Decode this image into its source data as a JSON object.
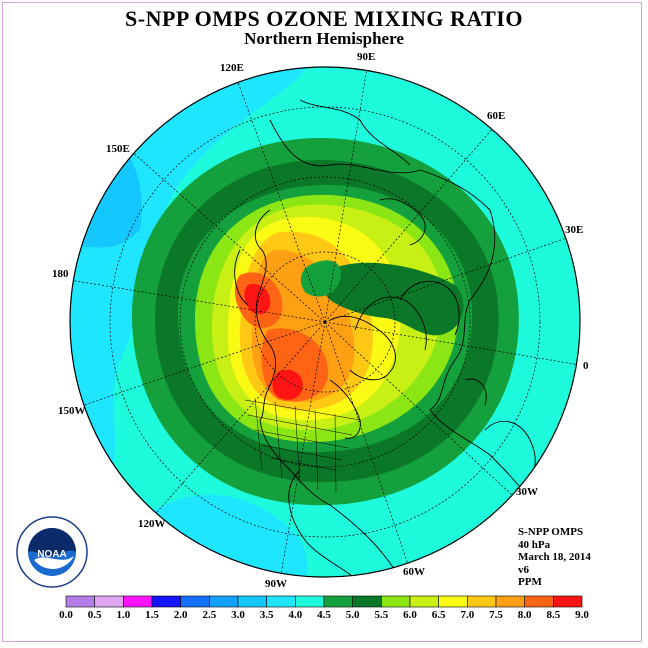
{
  "title": "S-NPP OMPS OZONE MIXING RATIO",
  "subtitle": "Northern Hemisphere",
  "longitude_labels": [
    "120E",
    "90E",
    "60E",
    "150E",
    "30E",
    "180",
    "0",
    "150W",
    "30W",
    "120W",
    "60W",
    "90W"
  ],
  "info": {
    "instrument": "S-NPP OMPS",
    "level": "40 hPa",
    "date": "March 18, 2014",
    "version": "v6",
    "units": "PPM"
  },
  "logo": {
    "text": "NOAA",
    "ring_text": "NATIONAL OCEANIC AND ATMOSPHERIC ADMINISTRATION · U.S. DEPARTMENT OF COMMERCE"
  },
  "colorbar": {
    "ticks": [
      "0.0",
      "0.5",
      "1.0",
      "1.5",
      "2.0",
      "2.5",
      "3.0",
      "3.5",
      "4.0",
      "4.5",
      "5.0",
      "5.5",
      "6.0",
      "6.5",
      "7.0",
      "7.5",
      "8.0",
      "8.5",
      "9.0"
    ],
    "colors": [
      "#b47ee6",
      "#e0a6f2",
      "#ff14ff",
      "#1414ff",
      "#1470ff",
      "#14a0ff",
      "#14c8ff",
      "#1ee6ff",
      "#1efadc",
      "#14a03c",
      "#0a7828",
      "#8ce614",
      "#c8f014",
      "#fafa14",
      "#ffc814",
      "#ffa014",
      "#ff6414",
      "#ff1414",
      "#8c5a3c"
    ]
  }
}
